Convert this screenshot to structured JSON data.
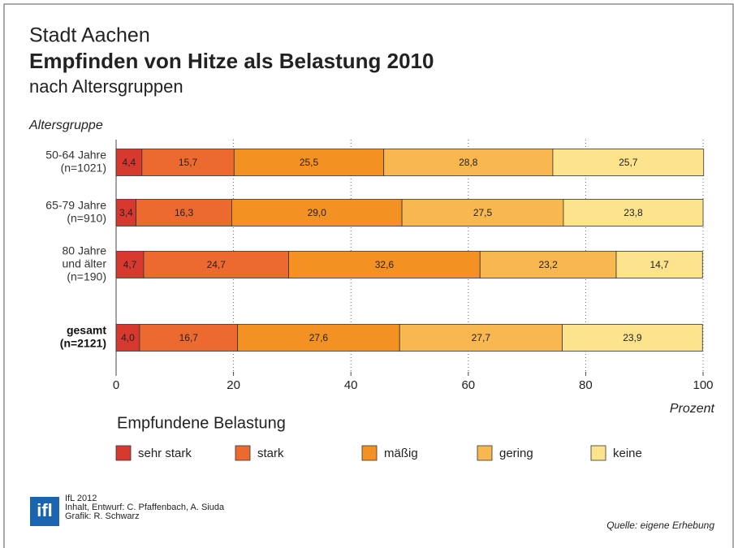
{
  "chart_data": {
    "type": "stacked-bar-horizontal",
    "title_top": "Stadt Aachen",
    "title": "Empfinden von Hitze als Belastung 2010",
    "subtitle": "nach Altersgruppen",
    "y_label": "Altersgruppe",
    "x_label": "Prozent",
    "categories": [
      [
        "50-64 Jahre",
        "(n=1021)"
      ],
      [
        "65-79 Jahre",
        "(n=910)"
      ],
      [
        "80 Jahre",
        "und älter",
        "(n=190)"
      ],
      [
        "gesamt",
        "(n=2121)"
      ]
    ],
    "series": [
      {
        "name": "sehr stark",
        "color": "#d7392e",
        "values": [
          4.4,
          3.4,
          4.7,
          4.0
        ],
        "value_labels": [
          "4,4",
          "3,4",
          "4,7",
          "4,0"
        ]
      },
      {
        "name": "stark",
        "color": "#ec6a2f",
        "values": [
          15.7,
          16.3,
          24.7,
          16.7
        ],
        "value_labels": [
          "15,7",
          "16,3",
          "24,7",
          "16,7"
        ]
      },
      {
        "name": "mäßig",
        "color": "#f39222",
        "values": [
          25.5,
          29.0,
          32.6,
          27.6
        ],
        "value_labels": [
          "25,5",
          "29,0",
          "32,6",
          "27,6"
        ]
      },
      {
        "name": "gering",
        "color": "#f8b74f",
        "values": [
          28.8,
          27.5,
          23.2,
          27.7
        ],
        "value_labels": [
          "28,8",
          "27,5",
          "23,2",
          "27,7"
        ]
      },
      {
        "name": "keine",
        "color": "#fde48c",
        "values": [
          25.7,
          23.8,
          14.7,
          23.9
        ],
        "value_labels": [
          "25,7",
          "23,8",
          "14,7",
          "23,9"
        ]
      }
    ],
    "xlim": [
      0,
      100
    ],
    "xticks": [
      0,
      20,
      40,
      60,
      80,
      100
    ],
    "grid": true,
    "legend_title": "Empfundene Belastung",
    "logo": "ifl",
    "credits": [
      "IfL 2012",
      "Inhalt, Entwurf: C. Pfaffenbach, A. Siuda",
      "Grafik: R. Schwarz"
    ],
    "source": "Quelle: eigene Erhebung"
  }
}
